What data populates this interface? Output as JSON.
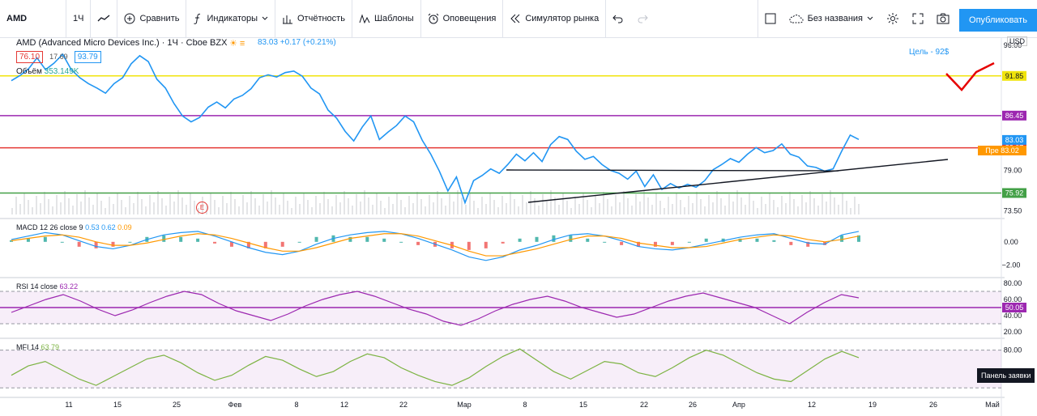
{
  "toolbar": {
    "symbol": "AMD",
    "interval": "1Ч",
    "compare": "Сравнить",
    "indicators": "Индикаторы",
    "reports": "Отчётность",
    "templates": "Шаблоны",
    "alerts": "Оповещения",
    "replay": "Симулятор рынка",
    "layout_name": "Без названия",
    "publish": "Опубликовать"
  },
  "legend": {
    "title": "AMD (Advanced Micro Devices Inc.) · 1Ч · Cboe BZX",
    "quote": "83.03 +0.17 (+0.21%)",
    "bid": "76.10",
    "spread": "17.69",
    "ask": "93.79",
    "volume_label": "Объём",
    "volume_value": "353.149K",
    "target_note": "Цель - 92$",
    "currency": "USD",
    "events_marker": "E",
    "order_panel": "Панель заявки"
  },
  "colors": {
    "price": "#2196f3",
    "yellow_level": "#f0e40c",
    "purple_level": "#9c27b0",
    "red_level": "#e53935",
    "green_level": "#43a047",
    "macd": "#2196f3",
    "signal": "#ff9800",
    "hist_pos": "#26a69a",
    "hist_neg": "#ef5350",
    "rsi": "#9c27b0",
    "mfi": "#7cb342",
    "annotation": "#e60000"
  },
  "chart_data": {
    "type": "line",
    "title": "AMD (Advanced Micro Devices Inc.) · 1Ч · Cboe BZX",
    "x_labels": [
      "11",
      "15",
      "25",
      "Фев",
      "8",
      "12",
      "22",
      "Мар",
      "8",
      "15",
      "22",
      "26",
      "Апр",
      "12",
      "19",
      "26",
      "Май"
    ],
    "series": [
      {
        "name": "AMD",
        "values": [
          91.2,
          91.9,
          92.8,
          94.3,
          92.7,
          93.6,
          94.8,
          92.7,
          91.6,
          90.8,
          90.2,
          89.5,
          90.8,
          91.6,
          93.5,
          94.6,
          93.8,
          91.4,
          90.2,
          88.1,
          86.4,
          85.6,
          86.2,
          87.6,
          88.3,
          87.5,
          88.7,
          89.2,
          90.1,
          91.6,
          92.0,
          91.7,
          92.3,
          92.5,
          91.8,
          90.2,
          89.4,
          87.2,
          86.1,
          84.3,
          83.0,
          84.9,
          86.4,
          83.2,
          84.2,
          85.1,
          86.4,
          85.6,
          83.1,
          81.2,
          78.9,
          76.2,
          78.1,
          74.6,
          77.6,
          78.3,
          79.2,
          78.6,
          79.8,
          81.2,
          80.3,
          81.4,
          80.2,
          82.5,
          83.6,
          83.2,
          81.6,
          80.5,
          80.9,
          79.8,
          79.0,
          78.6,
          77.8,
          78.9,
          76.8,
          78.4,
          76.4,
          77.2,
          76.6,
          77.1,
          76.7,
          77.6,
          79.1,
          79.8,
          80.6,
          80.1,
          81.2,
          82.1,
          81.4,
          81.7,
          82.6,
          81.2,
          80.8,
          79.6,
          79.4,
          78.9,
          79.2,
          81.6,
          83.8,
          83.2
        ]
      }
    ],
    "y_ticks": [
      96.0,
      91.85,
      86.45,
      83.03,
      83.02,
      82.07,
      79.0,
      75.92,
      73.5
    ],
    "levels": [
      {
        "value": 91.85,
        "color": "#f0e40c",
        "label": "91.85"
      },
      {
        "value": 86.45,
        "color": "#9c27b0",
        "label": "86.45"
      },
      {
        "value": 82.07,
        "color": "#e53935",
        "label": "82.07"
      },
      {
        "value": 75.92,
        "color": "#43a047",
        "label": "75.92"
      }
    ],
    "price_tags": [
      {
        "value": 83.03,
        "label": "83.03",
        "color": "#2196f3"
      },
      {
        "value": 83.02,
        "label": "Пре 83.02",
        "color": "#ff9800"
      }
    ],
    "ylim": [
      73.0,
      97.0
    ],
    "macd": {
      "label": "MACD 12 26 close 9",
      "values_text": [
        "0.53",
        "0.62",
        "0.09"
      ],
      "y_ticks": [
        "0.00",
        "−2.00"
      ],
      "ylim": [
        -2.8,
        1.8
      ],
      "macd": [
        0.2,
        0.5,
        0.8,
        0.6,
        0.1,
        -0.4,
        -0.6,
        -0.3,
        0.2,
        0.6,
        0.8,
        0.9,
        0.5,
        0.0,
        -0.5,
        -0.9,
        -1.1,
        -0.8,
        -0.2,
        0.3,
        0.6,
        0.8,
        0.9,
        0.7,
        0.3,
        -0.2,
        -0.7,
        -1.3,
        -1.6,
        -1.3,
        -0.7,
        -0.3,
        0.2,
        0.6,
        0.7,
        0.5,
        0.1,
        -0.4,
        -0.6,
        -0.7,
        -0.5,
        -0.2,
        0.1,
        0.4,
        0.6,
        0.7,
        0.3,
        -0.1,
        -0.2,
        0.6,
        0.9
      ],
      "signal": [
        0.1,
        0.3,
        0.5,
        0.6,
        0.4,
        0.0,
        -0.3,
        -0.3,
        -0.1,
        0.2,
        0.5,
        0.7,
        0.6,
        0.3,
        -0.1,
        -0.5,
        -0.8,
        -0.8,
        -0.5,
        -0.1,
        0.3,
        0.5,
        0.7,
        0.7,
        0.5,
        0.1,
        -0.3,
        -0.8,
        -1.2,
        -1.2,
        -0.9,
        -0.6,
        -0.2,
        0.2,
        0.5,
        0.5,
        0.3,
        -0.1,
        -0.3,
        -0.5,
        -0.5,
        -0.4,
        -0.1,
        0.2,
        0.4,
        0.6,
        0.5,
        0.2,
        0.0,
        0.2,
        0.5
      ]
    },
    "rsi": {
      "label": "RSI 14 close",
      "value_text": "63.22",
      "y_ticks": [
        "80.00",
        "60.00",
        "50.05",
        "40.00",
        "20.00"
      ],
      "band": [
        30,
        70
      ],
      "ylim": [
        15,
        85
      ],
      "values": [
        44,
        52,
        60,
        66,
        58,
        48,
        40,
        47,
        56,
        64,
        70,
        66,
        55,
        46,
        40,
        34,
        42,
        52,
        60,
        66,
        70,
        64,
        56,
        48,
        42,
        33,
        28,
        36,
        46,
        54,
        60,
        64,
        58,
        50,
        44,
        38,
        42,
        50,
        58,
        64,
        68,
        62,
        56,
        50,
        40,
        30,
        44,
        56,
        66,
        62
      ]
    },
    "mfi": {
      "label": "MFI 14",
      "value_text": "63.79",
      "y_ticks": [
        "80.00"
      ],
      "band": [
        20,
        80
      ],
      "ylim": [
        10,
        95
      ],
      "values": [
        40,
        55,
        62,
        48,
        34,
        24,
        38,
        52,
        66,
        72,
        60,
        44,
        32,
        40,
        56,
        70,
        64,
        50,
        38,
        46,
        62,
        74,
        68,
        52,
        40,
        30,
        24,
        36,
        54,
        70,
        82,
        64,
        46,
        34,
        48,
        62,
        58,
        44,
        38,
        52,
        68,
        80,
        72,
        58,
        44,
        34,
        30,
        48,
        66,
        78,
        68
      ]
    }
  }
}
